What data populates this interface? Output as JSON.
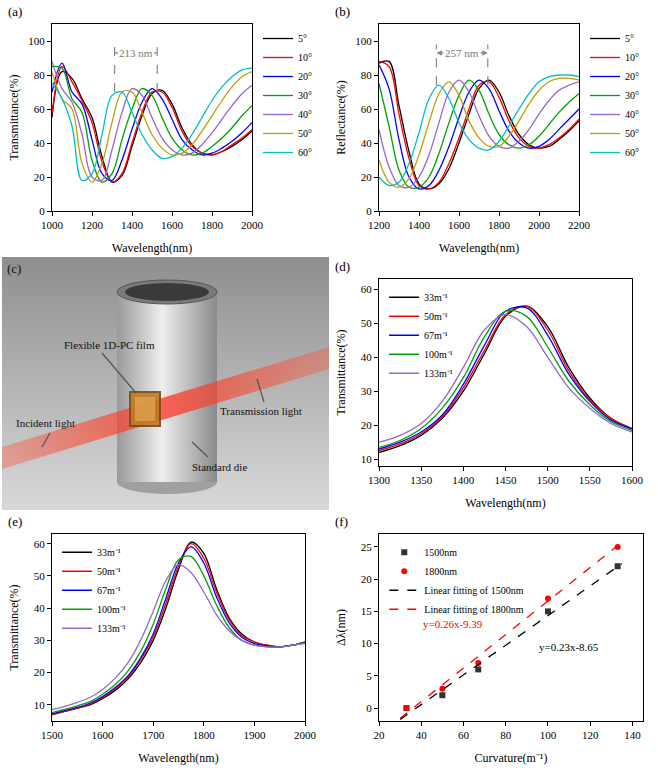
{
  "chart_data": [
    {
      "type": "line",
      "title": "(a)",
      "x_label": "Wavelength(nm)",
      "y_label": "Transmittance(%)",
      "x": [
        1000,
        1050,
        1100,
        1150,
        1200,
        1250,
        1300,
        1350,
        1400,
        1450,
        1500,
        1550,
        1600,
        1650,
        1700,
        1750,
        1800,
        1850,
        1900,
        1950,
        2000
      ],
      "series": [
        {
          "name": "5°",
          "color": "#000000",
          "values": [
            55,
            82,
            78,
            66,
            55,
            32,
            17,
            21,
            38,
            56,
            69,
            71,
            63,
            49,
            39,
            34,
            33,
            35,
            38,
            42,
            47
          ]
        },
        {
          "name": "10°",
          "color": "#ff0000",
          "values": [
            57,
            85,
            76,
            65,
            52,
            29,
            17,
            22,
            40,
            58,
            70,
            70,
            61,
            47,
            38,
            34,
            33,
            35,
            39,
            43,
            48
          ]
        },
        {
          "name": "20°",
          "color": "#0000ff",
          "values": [
            70,
            87,
            70,
            63,
            42,
            22,
            18,
            30,
            48,
            64,
            72,
            66,
            54,
            42,
            36,
            33,
            34,
            37,
            41,
            46,
            52
          ]
        },
        {
          "name": "30°",
          "color": "#00a000",
          "values": [
            85,
            84,
            66,
            58,
            30,
            17,
            22,
            42,
            60,
            72,
            68,
            55,
            43,
            36,
            33,
            34,
            38,
            43,
            49,
            56,
            62
          ]
        },
        {
          "name": "40°",
          "color": "#9966cc",
          "values": [
            88,
            72,
            64,
            45,
            20,
            18,
            36,
            58,
            72,
            68,
            55,
            43,
            36,
            33,
            34,
            39,
            46,
            54,
            62,
            69,
            74
          ]
        },
        {
          "name": "50°",
          "color": "#c0a000",
          "values": [
            82,
            66,
            60,
            28,
            17,
            28,
            52,
            70,
            70,
            58,
            45,
            37,
            33,
            34,
            39,
            47,
            56,
            65,
            73,
            79,
            82
          ]
        },
        {
          "name": "60°",
          "color": "#00c0c0",
          "values": [
            75,
            66,
            50,
            18,
            22,
            45,
            68,
            70,
            58,
            45,
            36,
            31,
            32,
            37,
            45,
            55,
            65,
            73,
            79,
            83,
            84
          ]
        }
      ],
      "xlim": [
        1000,
        2000
      ],
      "xticks": [
        1000,
        1200,
        1400,
        1600,
        1800,
        2000
      ],
      "ylim": [
        0,
        110
      ],
      "yticks": [
        0,
        20,
        40,
        60,
        80,
        100
      ],
      "grid": false,
      "legend": "right",
      "annotations": [
        {
          "text": "213 nm",
          "x0": 1313,
          "x1": 1526,
          "y": 93,
          "y0": 70,
          "y1": 98
        }
      ]
    },
    {
      "type": "line",
      "title": "(b)",
      "x_label": "Wavelength(nm)",
      "y_label": "Reflectance(%)",
      "x": [
        1200,
        1250,
        1300,
        1350,
        1400,
        1450,
        1500,
        1550,
        1600,
        1650,
        1700,
        1750,
        1800,
        1850,
        1900,
        1950,
        2000,
        2050,
        2100,
        2150,
        2200
      ],
      "series": [
        {
          "name": "5°",
          "color": "#000000",
          "values": [
            87,
            88,
            62,
            35,
            16,
            13,
            16,
            25,
            40,
            57,
            72,
            77,
            70,
            56,
            45,
            39,
            37,
            38,
            42,
            47,
            53
          ]
        },
        {
          "name": "10°",
          "color": "#ff0000",
          "values": [
            88,
            85,
            57,
            31,
            15,
            13,
            17,
            28,
            43,
            60,
            74,
            76,
            67,
            53,
            43,
            38,
            37,
            39,
            43,
            48,
            54
          ]
        },
        {
          "name": "20°",
          "color": "#0000ff",
          "values": [
            86,
            72,
            42,
            20,
            13,
            15,
            24,
            38,
            55,
            70,
            77,
            72,
            59,
            47,
            40,
            37,
            38,
            42,
            48,
            54,
            60
          ]
        },
        {
          "name": "30°",
          "color": "#00a000",
          "values": [
            75,
            50,
            24,
            14,
            14,
            20,
            34,
            52,
            68,
            77,
            71,
            57,
            45,
            39,
            37,
            39,
            44,
            51,
            58,
            64,
            69
          ]
        },
        {
          "name": "40°",
          "color": "#9966cc",
          "values": [
            48,
            26,
            15,
            14,
            20,
            33,
            52,
            70,
            77,
            70,
            56,
            44,
            38,
            37,
            41,
            48,
            57,
            65,
            71,
            74,
            76
          ]
        },
        {
          "name": "50°",
          "color": "#c0a000",
          "values": [
            30,
            17,
            14,
            19,
            33,
            52,
            69,
            76,
            68,
            53,
            43,
            38,
            38,
            44,
            53,
            63,
            71,
            76,
            78,
            78,
            77
          ]
        },
        {
          "name": "60°",
          "color": "#00c0c0",
          "values": [
            20,
            15,
            17,
            28,
            46,
            66,
            74,
            66,
            52,
            42,
            37,
            36,
            41,
            50,
            60,
            69,
            76,
            79,
            80,
            80,
            79
          ]
        }
      ],
      "xlim": [
        1200,
        2200
      ],
      "xticks": [
        1200,
        1400,
        1600,
        1800,
        2000,
        2200
      ],
      "ylim": [
        0,
        110
      ],
      "yticks": [
        0,
        20,
        40,
        60,
        80,
        100
      ],
      "grid": false,
      "legend": "right",
      "annotations": [
        {
          "text": "257 nm",
          "x0": 1487,
          "x1": 1744,
          "y": 93,
          "y0": 74,
          "y1": 98
        }
      ]
    },
    {
      "type": "line",
      "title": "(d)",
      "x_label": "Wavelength(nm)",
      "y_label": "Transmittance(%)",
      "x": [
        1300,
        1325,
        1350,
        1375,
        1400,
        1425,
        1450,
        1475,
        1500,
        1525,
        1550,
        1575,
        1600
      ],
      "series": [
        {
          "name": "33m⁻¹",
          "color": "#000000",
          "values": [
            12,
            14,
            17,
            22,
            30,
            41,
            52,
            55,
            49,
            37,
            28,
            22,
            19
          ]
        },
        {
          "name": "50m⁻¹",
          "color": "#ff0000",
          "values": [
            12.5,
            14.5,
            17.5,
            22.5,
            31,
            42,
            52.5,
            55,
            48,
            36,
            27.5,
            22,
            19
          ]
        },
        {
          "name": "67m⁻¹",
          "color": "#0000ff",
          "values": [
            13,
            15,
            18,
            23,
            32,
            43.5,
            53.5,
            54.5,
            46.5,
            35,
            27,
            21.5,
            19
          ]
        },
        {
          "name": "100m⁻¹",
          "color": "#00a000",
          "values": [
            13.5,
            15.5,
            19,
            25,
            34,
            46,
            53.5,
            52,
            43,
            33,
            26,
            21,
            18.5
          ]
        },
        {
          "name": "133m⁻¹",
          "color": "#9966cc",
          "values": [
            15,
            17,
            20.5,
            27,
            37,
            48,
            52.5,
            49,
            40,
            31,
            25,
            20.5,
            18
          ]
        }
      ],
      "xlim": [
        1300,
        1600
      ],
      "xticks": [
        1300,
        1350,
        1400,
        1450,
        1500,
        1550,
        1600
      ],
      "ylim": [
        8,
        63
      ],
      "yticks": [
        10,
        20,
        30,
        40,
        50,
        60
      ],
      "grid": false,
      "legend": "top left"
    },
    {
      "type": "line",
      "title": "(e)",
      "x_label": "Wavelength(nm)",
      "y_label": "Transmittance(%)",
      "x": [
        1500,
        1525,
        1550,
        1575,
        1600,
        1625,
        1650,
        1675,
        1700,
        1725,
        1750,
        1775,
        1800,
        1825,
        1850,
        1875,
        1900,
        1925,
        1950,
        1975,
        2000
      ],
      "series": [
        {
          "name": "33m⁻¹",
          "color": "#000000",
          "values": [
            7,
            8,
            9,
            10,
            12,
            14.5,
            18,
            23,
            30,
            40,
            52,
            60.5,
            57,
            46,
            37,
            32,
            29.5,
            28.5,
            28,
            28.5,
            29.5
          ]
        },
        {
          "name": "50m⁻¹",
          "color": "#ff0000",
          "values": [
            7,
            8,
            9,
            10.2,
            12.3,
            15,
            18.5,
            24,
            31,
            41.5,
            53,
            60,
            55.5,
            45,
            36.5,
            31.5,
            29.5,
            28.5,
            28,
            28.5,
            29.5
          ]
        },
        {
          "name": "67m⁻¹",
          "color": "#0000ff",
          "values": [
            7.2,
            8.2,
            9.2,
            10.5,
            12.6,
            15.4,
            19,
            24.5,
            32,
            43,
            54,
            59,
            54,
            43.5,
            35.5,
            31,
            29,
            28.3,
            28,
            28.5,
            29.5
          ]
        },
        {
          "name": "100m⁻¹",
          "color": "#00a000",
          "values": [
            7.6,
            8.6,
            9.7,
            11,
            13.3,
            16.3,
            20.5,
            26.5,
            35,
            46,
            55,
            56,
            50,
            41,
            34,
            30,
            28.5,
            28,
            28,
            28.5,
            29.5
          ]
        },
        {
          "name": "133m⁻¹",
          "color": "#9966cc",
          "values": [
            8.5,
            9.5,
            10.8,
            12.3,
            14.8,
            18.3,
            23,
            30,
            39,
            48.5,
            53.5,
            51,
            45,
            38,
            33,
            30,
            28.5,
            28,
            28,
            28.5,
            29
          ]
        }
      ],
      "xlim": [
        1500,
        2000
      ],
      "xticks": [
        1500,
        1600,
        1700,
        1800,
        1900,
        2000
      ],
      "ylim": [
        5,
        63
      ],
      "yticks": [
        10,
        20,
        30,
        40,
        50,
        60
      ],
      "grid": false,
      "legend": "top left"
    },
    {
      "type": "scatter",
      "title": "(f)",
      "x_label": "Curvature(m⁻¹)",
      "y_label": "Δλ(nm)",
      "series": [
        {
          "name": "1500nm",
          "type": "scatter",
          "marker": "square",
          "color": "#333333",
          "x": [
            33,
            50,
            67,
            100,
            133
          ],
          "values": [
            0,
            2,
            6,
            15,
            22
          ]
        },
        {
          "name": "1800nm",
          "type": "scatter",
          "marker": "circle",
          "color": "#ff0000",
          "x": [
            33,
            50,
            67,
            100,
            133
          ],
          "values": [
            0,
            3,
            7,
            17,
            25
          ]
        },
        {
          "name": "Linear fitting of 1500nm",
          "type": "line",
          "line_style": "dashed",
          "color": "#000000",
          "x": [
            30,
            135
          ],
          "values": [
            -1.75,
            22.4
          ]
        },
        {
          "name": "Linear fitting of 1800nm",
          "type": "line",
          "line_style": "dashed",
          "color": "#ff0000",
          "x": [
            30,
            135
          ],
          "values": [
            -1.59,
            25.71
          ]
        }
      ],
      "xlim": [
        20,
        145
      ],
      "xticks": [
        20,
        40,
        60,
        80,
        100,
        120,
        140
      ],
      "ylim": [
        -2,
        27
      ],
      "yticks": [
        0,
        5,
        10,
        15,
        20,
        25
      ],
      "grid": false,
      "legend": "top left",
      "annotations": [
        {
          "text": "y=0.26x-9.39",
          "x": 55,
          "y": 13,
          "color": "#ff0000"
        },
        {
          "text": "y=0.23x-8.65",
          "x": 110,
          "y": 9.5,
          "color": "#000000"
        }
      ]
    }
  ],
  "diagram": {
    "panel": "(c)",
    "film": "Flexible 1D-PC film",
    "incident": "Incident light",
    "transmission": "Transmission light",
    "die": "Standard die"
  }
}
